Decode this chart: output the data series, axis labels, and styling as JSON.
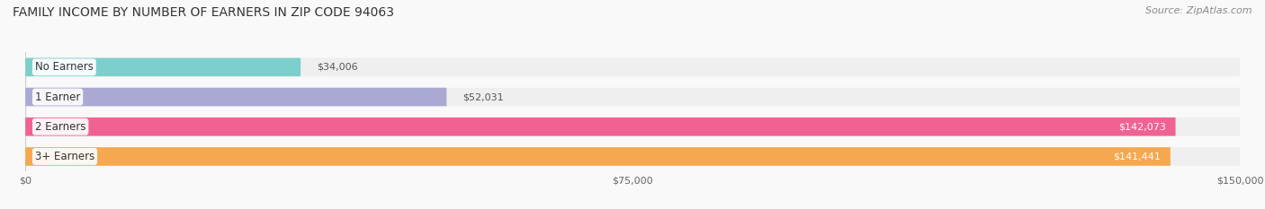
{
  "title": "FAMILY INCOME BY NUMBER OF EARNERS IN ZIP CODE 94063",
  "source": "Source: ZipAtlas.com",
  "categories": [
    "No Earners",
    "1 Earner",
    "2 Earners",
    "3+ Earners"
  ],
  "values": [
    34006,
    52031,
    142073,
    141441
  ],
  "bar_colors": [
    "#7dcfcc",
    "#a9a9d4",
    "#f06292",
    "#f5a84e"
  ],
  "bar_bg_color": "#efefef",
  "value_labels": [
    "$34,006",
    "$52,031",
    "$142,073",
    "$141,441"
  ],
  "xlim": [
    0,
    150000
  ],
  "xticks": [
    0,
    75000,
    150000
  ],
  "xtick_labels": [
    "$0",
    "$75,000",
    "$150,000"
  ],
  "title_fontsize": 10,
  "source_fontsize": 8,
  "label_fontsize": 8.5,
  "value_fontsize": 8,
  "background_color": "#f9f9f9"
}
